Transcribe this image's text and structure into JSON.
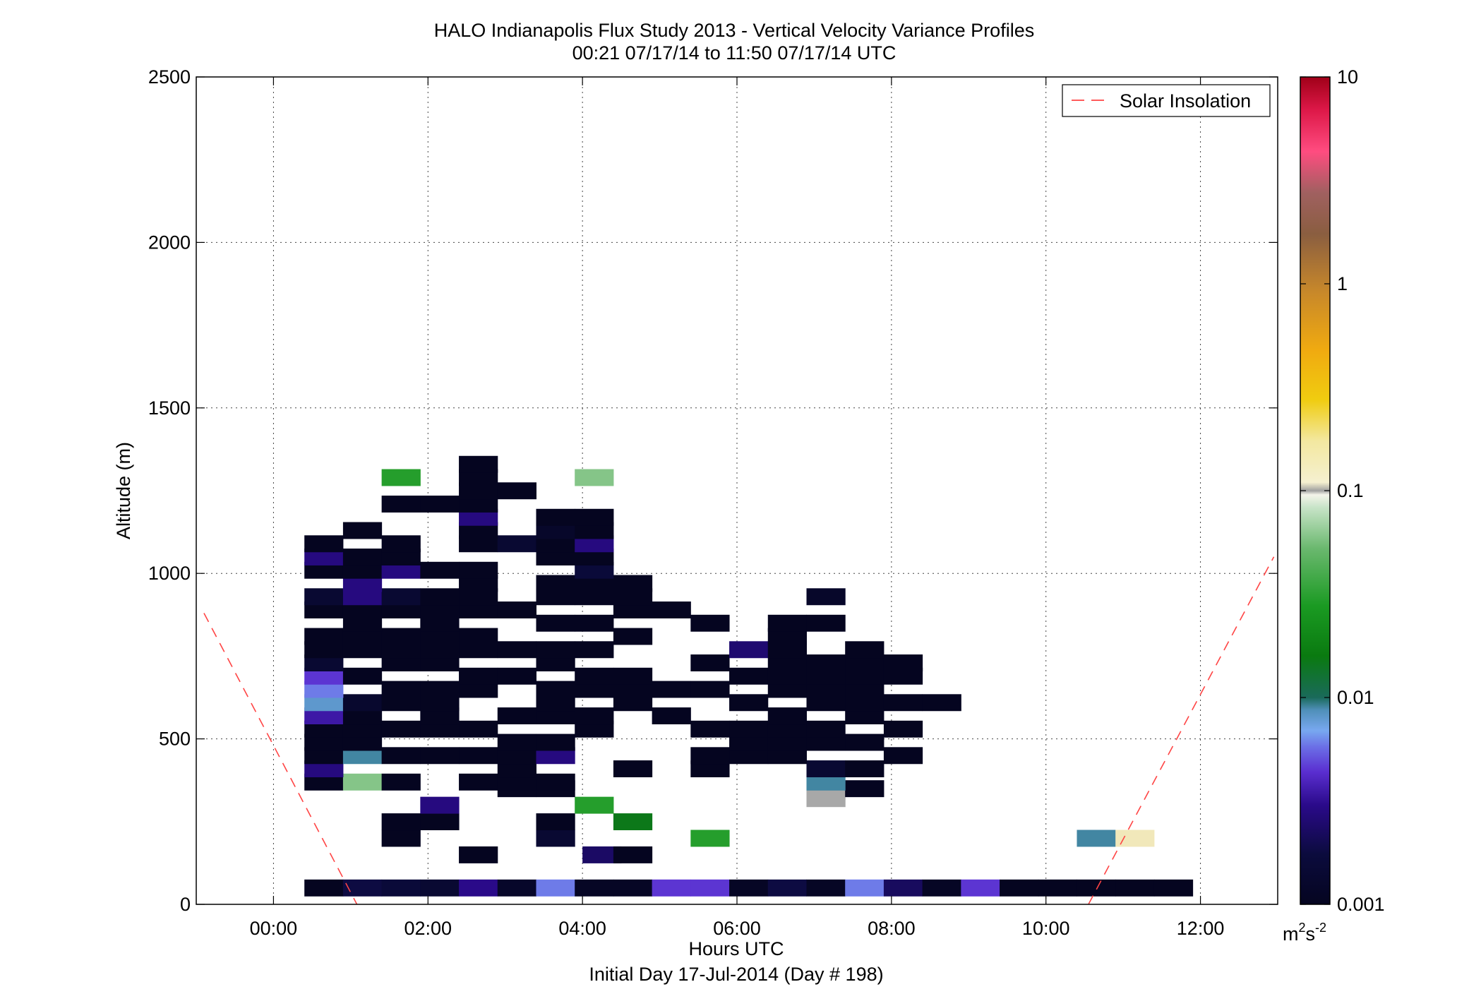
{
  "chart_data": {
    "type": "heatmap",
    "title": "HALO Indianapolis Flux Study 2013 - Vertical Velocity Variance Profiles",
    "subtitle": "00:21 07/17/14 to 11:50 07/17/14  UTC",
    "xlabel": "Hours UTC",
    "xlabel2": "Initial Day 17-Jul-2014 (Day # 198)",
    "ylabel": "Altitude (m)",
    "xlim": [
      -1,
      13
    ],
    "ylim": [
      0,
      2500
    ],
    "x_ticks": [
      0,
      2,
      4,
      6,
      8,
      10,
      12
    ],
    "x_tick_labels": [
      "00:00",
      "02:00",
      "04:00",
      "06:00",
      "08:00",
      "10:00",
      "12:00"
    ],
    "y_ticks": [
      0,
      500,
      1000,
      1500,
      2000,
      2500
    ],
    "y_tick_labels": [
      "0",
      "500",
      "1000",
      "1500",
      "2000",
      "2500"
    ],
    "grid": true,
    "legend": {
      "placement": "top-right",
      "entries": [
        {
          "label": "Solar Insolation",
          "color": "#ff4444",
          "style": "dashed"
        }
      ]
    },
    "colorbar": {
      "scale": "log",
      "range": [
        0.001,
        10
      ],
      "unit": "m",
      "unit_sup": "2",
      "unit_s": "s",
      "unit_s_sup": "-2",
      "ticks": [
        0.001,
        0.01,
        0.1,
        1,
        10
      ],
      "tick_labels": [
        "0.001",
        "0.01",
        "0.1",
        "1",
        "10"
      ]
    },
    "bin_width_hours": 0.5,
    "bin_height_m": 50,
    "solar_insolation": {
      "name": "Solar Insolation",
      "left": {
        "x": [
          -0.9,
          1.08
        ],
        "y": [
          880,
          0
        ]
      },
      "right": {
        "x": [
          10.55,
          12.95
        ],
        "y": [
          0,
          1050
        ]
      }
    },
    "cells": [
      [
        0.4,
        50,
        0.001
      ],
      [
        0.9,
        50,
        0.0018
      ],
      [
        1.4,
        50,
        0.0016
      ],
      [
        1.9,
        50,
        0.0014
      ],
      [
        2.4,
        50,
        0.003
      ],
      [
        2.9,
        50,
        0.0012
      ],
      [
        3.4,
        50,
        0.006
      ],
      [
        3.9,
        50,
        0.0011
      ],
      [
        4.4,
        50,
        0.0011
      ],
      [
        4.9,
        50,
        0.0045
      ],
      [
        5.4,
        50,
        0.0045
      ],
      [
        5.9,
        50,
        0.0011
      ],
      [
        6.4,
        50,
        0.0018
      ],
      [
        6.9,
        50,
        0.0011
      ],
      [
        7.4,
        50,
        0.006
      ],
      [
        7.9,
        50,
        0.0022
      ],
      [
        8.4,
        50,
        0.0011
      ],
      [
        8.9,
        50,
        0.0045
      ],
      [
        9.4,
        50,
        0.001
      ],
      [
        9.9,
        50,
        0.001
      ],
      [
        10.4,
        50,
        0.001
      ],
      [
        10.9,
        50,
        0.001
      ],
      [
        11.4,
        50,
        0.001
      ],
      [
        2.4,
        150,
        0.001
      ],
      [
        4.0,
        150,
        0.0023
      ],
      [
        4.4,
        150,
        0.001
      ],
      [
        1.4,
        200,
        0.001
      ],
      [
        3.4,
        200,
        0.0014
      ],
      [
        5.4,
        200,
        0.03
      ],
      [
        10.4,
        200,
        0.009
      ],
      [
        10.9,
        200,
        0.12
      ],
      [
        1.4,
        250,
        0.001
      ],
      [
        1.9,
        250,
        0.001
      ],
      [
        3.4,
        250,
        0.001
      ],
      [
        4.4,
        250,
        0.015
      ],
      [
        1.9,
        300,
        0.0028
      ],
      [
        3.9,
        300,
        0.03
      ],
      [
        6.9,
        320,
        0.1
      ],
      [
        2.9,
        350,
        0.001
      ],
      [
        3.4,
        350,
        0.001
      ],
      [
        7.4,
        350,
        0.001
      ],
      [
        0.4,
        370,
        0.001
      ],
      [
        0.9,
        370,
        0.06
      ],
      [
        1.4,
        370,
        0.001
      ],
      [
        2.4,
        370,
        0.001
      ],
      [
        2.9,
        370,
        0.001
      ],
      [
        3.4,
        370,
        0.001
      ],
      [
        6.9,
        370,
        0.009
      ],
      [
        0.4,
        410,
        0.0028
      ],
      [
        2.9,
        410,
        0.001
      ],
      [
        4.4,
        410,
        0.001
      ],
      [
        5.4,
        410,
        0.001
      ],
      [
        6.9,
        410,
        0.0014
      ],
      [
        7.4,
        410,
        0.001
      ],
      [
        0.4,
        450,
        0.001
      ],
      [
        0.9,
        450,
        0.009
      ],
      [
        1.4,
        450,
        0.001
      ],
      [
        1.9,
        450,
        0.001
      ],
      [
        2.4,
        450,
        0.001
      ],
      [
        2.9,
        450,
        0.001
      ],
      [
        3.4,
        450,
        0.0028
      ],
      [
        5.4,
        450,
        0.001
      ],
      [
        5.9,
        450,
        0.001
      ],
      [
        6.4,
        450,
        0.001
      ],
      [
        7.9,
        450,
        0.001
      ],
      [
        0.4,
        490,
        0.001
      ],
      [
        0.9,
        490,
        0.001
      ],
      [
        2.9,
        490,
        0.001
      ],
      [
        3.4,
        490,
        0.001
      ],
      [
        5.9,
        490,
        0.001
      ],
      [
        6.4,
        490,
        0.001
      ],
      [
        6.9,
        490,
        0.001
      ],
      [
        7.4,
        490,
        0.001
      ],
      [
        0.4,
        530,
        0.001
      ],
      [
        0.9,
        530,
        0.001
      ],
      [
        1.4,
        530,
        0.001
      ],
      [
        1.9,
        530,
        0.001
      ],
      [
        2.4,
        530,
        0.001
      ],
      [
        3.9,
        530,
        0.001
      ],
      [
        5.4,
        530,
        0.001
      ],
      [
        5.9,
        530,
        0.001
      ],
      [
        6.4,
        530,
        0.001
      ],
      [
        6.9,
        530,
        0.001
      ],
      [
        7.9,
        530,
        0.001
      ],
      [
        0.4,
        570,
        0.0035
      ],
      [
        0.9,
        570,
        0.001
      ],
      [
        1.9,
        570,
        0.001
      ],
      [
        2.9,
        570,
        0.001
      ],
      [
        3.4,
        570,
        0.001
      ],
      [
        3.9,
        570,
        0.001
      ],
      [
        4.9,
        570,
        0.001
      ],
      [
        6.4,
        570,
        0.001
      ],
      [
        7.4,
        570,
        0.001
      ],
      [
        0.4,
        610,
        0.008
      ],
      [
        0.9,
        610,
        0.0013
      ],
      [
        1.4,
        610,
        0.001
      ],
      [
        1.9,
        610,
        0.001
      ],
      [
        3.4,
        610,
        0.001
      ],
      [
        4.4,
        610,
        0.001
      ],
      [
        5.9,
        610,
        0.001
      ],
      [
        6.9,
        610,
        0.001
      ],
      [
        7.4,
        610,
        0.001
      ],
      [
        7.9,
        610,
        0.001
      ],
      [
        8.4,
        610,
        0.001
      ],
      [
        0.4,
        650,
        0.006
      ],
      [
        1.4,
        650,
        0.001
      ],
      [
        1.9,
        650,
        0.001
      ],
      [
        2.4,
        650,
        0.001
      ],
      [
        3.4,
        650,
        0.001
      ],
      [
        3.9,
        650,
        0.001
      ],
      [
        4.4,
        650,
        0.001
      ],
      [
        4.9,
        650,
        0.001
      ],
      [
        5.4,
        650,
        0.001
      ],
      [
        6.4,
        650,
        0.001
      ],
      [
        6.9,
        650,
        0.001
      ],
      [
        7.4,
        650,
        0.001
      ],
      [
        0.4,
        690,
        0.0045
      ],
      [
        0.9,
        690,
        0.001
      ],
      [
        2.4,
        690,
        0.001
      ],
      [
        2.9,
        690,
        0.001
      ],
      [
        3.9,
        690,
        0.001
      ],
      [
        4.4,
        690,
        0.001
      ],
      [
        5.9,
        690,
        0.001
      ],
      [
        6.4,
        690,
        0.001
      ],
      [
        6.9,
        690,
        0.001
      ],
      [
        7.4,
        690,
        0.001
      ],
      [
        7.9,
        690,
        0.001
      ],
      [
        0.4,
        730,
        0.0014
      ],
      [
        1.4,
        730,
        0.001
      ],
      [
        1.9,
        730,
        0.001
      ],
      [
        3.4,
        730,
        0.001
      ],
      [
        5.4,
        730,
        0.001
      ],
      [
        6.4,
        730,
        0.001
      ],
      [
        6.9,
        730,
        0.001
      ],
      [
        7.4,
        730,
        0.001
      ],
      [
        7.9,
        730,
        0.001
      ],
      [
        0.4,
        770,
        0.001
      ],
      [
        0.9,
        770,
        0.001
      ],
      [
        1.4,
        770,
        0.001
      ],
      [
        1.9,
        770,
        0.001
      ],
      [
        2.4,
        770,
        0.001
      ],
      [
        2.9,
        770,
        0.001
      ],
      [
        3.4,
        770,
        0.001
      ],
      [
        3.9,
        770,
        0.001
      ],
      [
        5.9,
        770,
        0.0025
      ],
      [
        6.4,
        770,
        0.001
      ],
      [
        7.4,
        770,
        0.001
      ],
      [
        0.4,
        810,
        0.001
      ],
      [
        0.9,
        810,
        0.001
      ],
      [
        1.4,
        810,
        0.001
      ],
      [
        1.9,
        810,
        0.001
      ],
      [
        2.4,
        810,
        0.001
      ],
      [
        4.4,
        810,
        0.001
      ],
      [
        6.4,
        810,
        0.001
      ],
      [
        0.9,
        850,
        0.001
      ],
      [
        1.9,
        850,
        0.001
      ],
      [
        3.4,
        850,
        0.001
      ],
      [
        3.9,
        850,
        0.001
      ],
      [
        5.4,
        850,
        0.001
      ],
      [
        6.4,
        850,
        0.001
      ],
      [
        6.9,
        850,
        0.001
      ],
      [
        0.4,
        890,
        0.001
      ],
      [
        0.9,
        890,
        0.001
      ],
      [
        1.4,
        890,
        0.001
      ],
      [
        1.9,
        890,
        0.001
      ],
      [
        2.4,
        890,
        0.001
      ],
      [
        2.9,
        890,
        0.001
      ],
      [
        4.4,
        890,
        0.001
      ],
      [
        4.9,
        890,
        0.001
      ],
      [
        0.4,
        930,
        0.0014
      ],
      [
        0.9,
        930,
        0.0028
      ],
      [
        1.4,
        930,
        0.0014
      ],
      [
        1.9,
        930,
        0.001
      ],
      [
        2.4,
        930,
        0.001
      ],
      [
        3.4,
        930,
        0.001
      ],
      [
        3.9,
        930,
        0.001
      ],
      [
        4.4,
        930,
        0.001
      ],
      [
        6.9,
        930,
        0.0012
      ],
      [
        0.9,
        970,
        0.0028
      ],
      [
        2.4,
        970,
        0.001
      ],
      [
        3.4,
        970,
        0.001
      ],
      [
        3.9,
        970,
        0.001
      ],
      [
        4.4,
        970,
        0.001
      ],
      [
        0.4,
        1010,
        0.001
      ],
      [
        0.9,
        1010,
        0.001
      ],
      [
        1.4,
        1010,
        0.0028
      ],
      [
        1.9,
        1010,
        0.001
      ],
      [
        2.4,
        1010,
        0.001
      ],
      [
        3.9,
        1010,
        0.0016
      ],
      [
        0.4,
        1050,
        0.0028
      ],
      [
        0.9,
        1050,
        0.001
      ],
      [
        1.4,
        1050,
        0.001
      ],
      [
        3.4,
        1050,
        0.001
      ],
      [
        3.9,
        1050,
        0.001
      ],
      [
        0.4,
        1090,
        0.001
      ],
      [
        1.4,
        1090,
        0.001
      ],
      [
        2.4,
        1090,
        0.001
      ],
      [
        2.9,
        1090,
        0.0014
      ],
      [
        3.4,
        1090,
        0.001
      ],
      [
        3.9,
        1090,
        0.0028
      ],
      [
        0.9,
        1130,
        0.001
      ],
      [
        2.4,
        1130,
        0.001
      ],
      [
        3.4,
        1130,
        0.0012
      ],
      [
        3.9,
        1130,
        0.001
      ],
      [
        2.4,
        1170,
        0.0028
      ],
      [
        3.4,
        1170,
        0.001
      ],
      [
        3.9,
        1170,
        0.001
      ],
      [
        1.4,
        1210,
        0.001
      ],
      [
        1.9,
        1210,
        0.001
      ],
      [
        2.4,
        1210,
        0.001
      ],
      [
        2.4,
        1250,
        0.001
      ],
      [
        2.9,
        1250,
        0.001
      ],
      [
        1.4,
        1290,
        0.03
      ],
      [
        2.4,
        1290,
        0.001
      ],
      [
        3.9,
        1290,
        0.06
      ],
      [
        2.4,
        1330,
        0.001
      ]
    ]
  }
}
